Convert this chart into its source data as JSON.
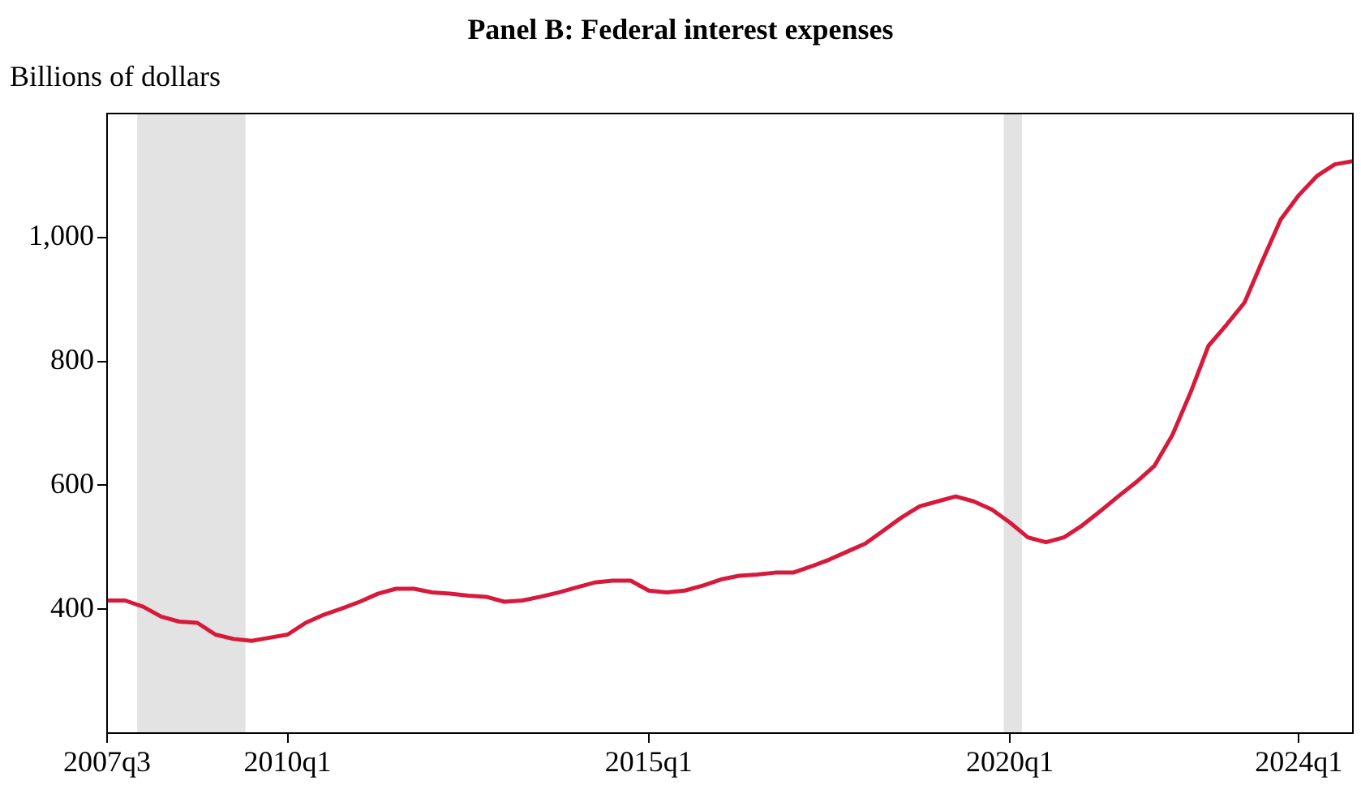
{
  "chart_data": {
    "type": "line",
    "title": "Panel B: Federal interest expenses",
    "ylabel": "Billions of dollars",
    "x": [
      "2007-07",
      "2007-10",
      "2008-01",
      "2008-04",
      "2008-07",
      "2008-10",
      "2009-01",
      "2009-04",
      "2009-07",
      "2009-10",
      "2010-01",
      "2010-04",
      "2010-07",
      "2010-10",
      "2011-01",
      "2011-04",
      "2011-07",
      "2011-10",
      "2012-01",
      "2012-04",
      "2012-07",
      "2012-10",
      "2013-01",
      "2013-04",
      "2013-07",
      "2013-10",
      "2014-01",
      "2014-04",
      "2014-07",
      "2014-10",
      "2015-01",
      "2015-04",
      "2015-07",
      "2015-10",
      "2016-01",
      "2016-04",
      "2016-07",
      "2016-10",
      "2017-01",
      "2017-04",
      "2017-07",
      "2017-10",
      "2018-01",
      "2018-04",
      "2018-07",
      "2018-10",
      "2019-01",
      "2019-04",
      "2019-07",
      "2019-10",
      "2020-01",
      "2020-04",
      "2020-07",
      "2020-10",
      "2021-01",
      "2021-04",
      "2021-07",
      "2021-10",
      "2022-01",
      "2022-04",
      "2022-07",
      "2022-10",
      "2023-01",
      "2023-04",
      "2023-07",
      "2023-10",
      "2024-01",
      "2024-04",
      "2024-07",
      "2024-10"
    ],
    "series": [
      {
        "color": "#d7193a",
        "values": [
          414,
          414,
          404,
          388,
          380,
          378,
          359,
          352,
          349,
          354,
          359,
          378,
          391,
          401,
          412,
          425,
          433,
          433,
          427,
          425,
          422,
          420,
          412,
          414,
          420,
          427,
          435,
          443,
          446,
          446,
          430,
          427,
          430,
          438,
          448,
          454,
          456,
          459,
          459,
          469,
          480,
          493,
          506,
          527,
          548,
          566,
          574,
          582,
          574,
          561,
          540,
          516,
          508,
          516,
          535,
          558,
          582,
          605,
          631,
          681,
          749,
          825,
          859,
          895,
          963,
          1029,
          1068,
          1099,
          1118,
          1123
        ]
      }
    ],
    "xlim": [
      "2007-07",
      "2024-10"
    ],
    "xticks": [
      {
        "value": "2007-07",
        "label": "2007q3"
      },
      {
        "value": "2010-01",
        "label": "2010q1"
      },
      {
        "value": "2015-01",
        "label": "2015q1"
      },
      {
        "value": "2020-01",
        "label": "2020q1"
      },
      {
        "value": "2024-01",
        "label": "2024q1"
      }
    ],
    "ylim": [
      200,
      1200
    ],
    "yticks": [
      400,
      600,
      800,
      {
        "value": 1000,
        "label": "1,000"
      }
    ],
    "bands": [
      {
        "axis": "x",
        "from": "2007-12",
        "to": "2009-06",
        "color": "#e3e3e3"
      },
      {
        "axis": "x",
        "from": "2019-12",
        "to": "2020-03",
        "color": "#e3e3e3"
      }
    ],
    "grid": false,
    "legend": false,
    "marker": "none",
    "line_style": "solid"
  }
}
